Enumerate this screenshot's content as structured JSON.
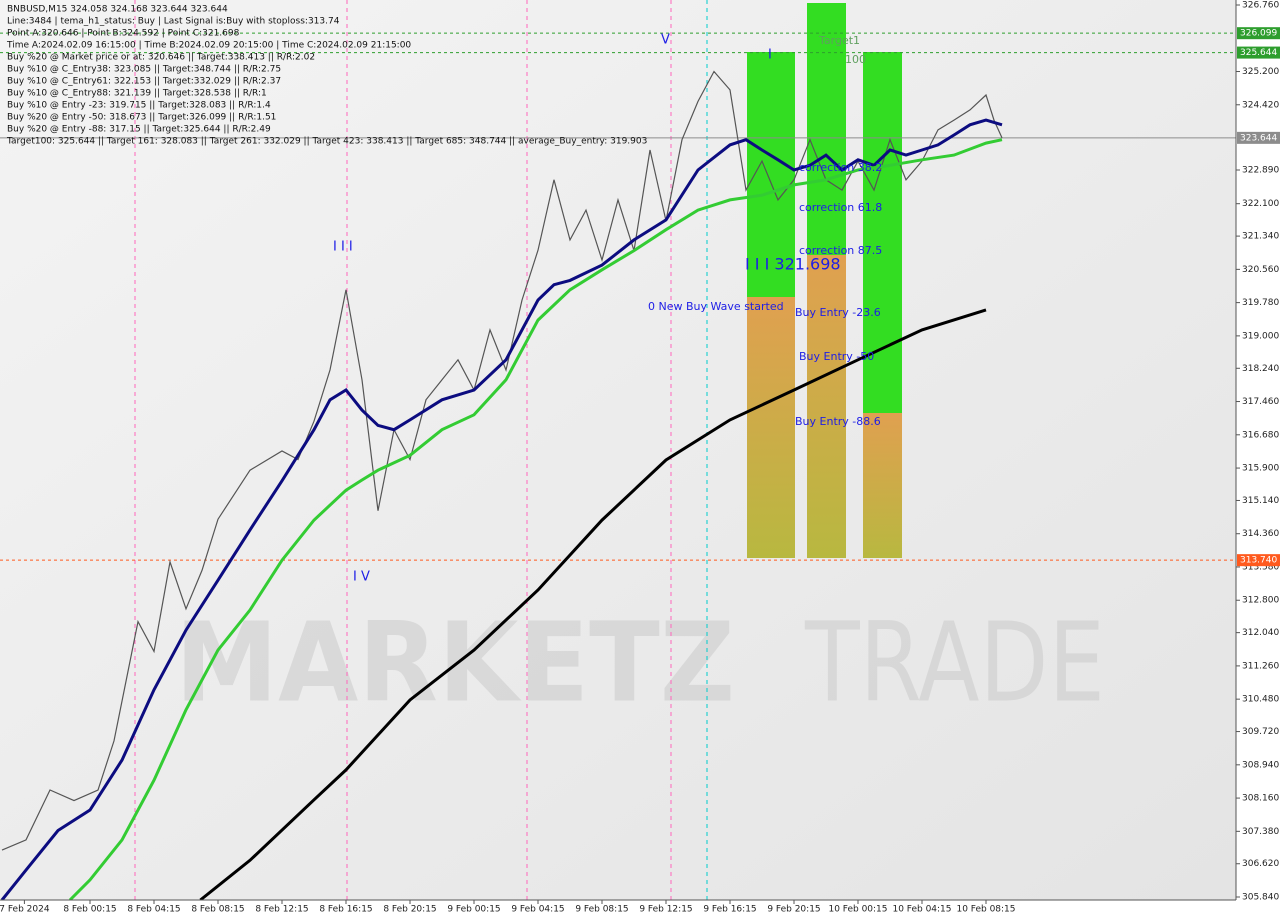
{
  "chart_data": {
    "type": "line",
    "info": [
      "BNBUSD,M15  324.058 324.168 323.644 323.644",
      "Line:3484 | tema_h1_status: Buy | Last Signal is:Buy with stoploss:313.74",
      "Point A:320.646 | Point B:324.592 | Point C:321.698",
      "Time A:2024.02.09 16:15:00 | Time B:2024.02.09 20:15:00 | Time C:2024.02.09 21:15:00",
      "Buy %20 @ Market price or at: 320.646 || Target:338.413 || R/R:2.02",
      "Buy %10 @ C_Entry38: 323.085 || Target:348.744 || R/R:2.75",
      "Buy %10 @ C_Entry61: 322.153 || Target:332.029 || R/R:2.37",
      "Buy %10 @ C_Entry88: 321.139 || Target:328.538 || R/R:1",
      "Buy %10 @ Entry -23: 319.715 || Target:328.083 || R/R:1.4",
      "Buy %20 @ Entry -50: 318.673 || Target:326.099 || R/R:1.51",
      "Buy %20 @ Entry -88: 317.15 || Target:325.644 || R/R:2.49",
      "Target100: 325.644 || Target 161: 328.083 || Target 261: 332.029 || Target 423: 338.413 || Target 685: 348.744 || average_Buy_entry: 319.903"
    ],
    "annotations": [
      "Target1",
      "100",
      "I I I 321.698",
      "0 New Buy Wave started",
      "Buy Entry -23.6",
      "Buy Entry -50",
      "Buy Entry -88.6",
      "correction 61.8",
      "correction 87.5",
      "correction 38.2",
      "I I I",
      "I V",
      "V",
      "I"
    ],
    "watermark": [
      "MARKETZ",
      "TRADE"
    ],
    "xlim": [
      -5.625,
      71.625
    ],
    "xticks": [
      {
        "value": -4.1,
        "label": "7 Feb 2024"
      },
      {
        "value": 0,
        "label": "8 Feb 00:15"
      },
      {
        "value": 4,
        "label": "8 Feb 04:15"
      },
      {
        "value": 8,
        "label": "8 Feb 08:15"
      },
      {
        "value": 12,
        "label": "8 Feb 12:15"
      },
      {
        "value": 16,
        "label": "8 Feb 16:15"
      },
      {
        "value": 20,
        "label": "8 Feb 20:15"
      },
      {
        "value": 24,
        "label": "9 Feb 00:15"
      },
      {
        "value": 28,
        "label": "9 Feb 04:15"
      },
      {
        "value": 32,
        "label": "9 Feb 08:15"
      },
      {
        "value": 36,
        "label": "9 Feb 12:15"
      },
      {
        "value": 40,
        "label": "9 Feb 16:15"
      },
      {
        "value": 44,
        "label": "9 Feb 20:15"
      },
      {
        "value": 48,
        "label": "10 Feb 00:15"
      },
      {
        "value": 52,
        "label": "10 Feb 04:15"
      },
      {
        "value": 56,
        "label": "10 Feb 08:15"
      }
    ],
    "ylim": [
      305.84,
      326.76
    ],
    "yticks": [
      {
        "value": 326.76,
        "label": "326.760"
      },
      {
        "value": 325.2,
        "label": "325.200"
      },
      {
        "value": 324.42,
        "label": "324.420"
      },
      {
        "value": 322.89,
        "label": "322.890"
      },
      {
        "value": 322.1,
        "label": "322.100"
      },
      {
        "value": 321.34,
        "label": "321.340"
      },
      {
        "value": 320.56,
        "label": "320.560"
      },
      {
        "value": 319.78,
        "label": "319.780"
      },
      {
        "value": 319,
        "label": "319.000"
      },
      {
        "value": 318.24,
        "label": "318.240"
      },
      {
        "value": 317.46,
        "label": "317.460"
      },
      {
        "value": 316.68,
        "label": "316.680"
      },
      {
        "value": 315.9,
        "label": "315.900"
      },
      {
        "value": 315.14,
        "label": "315.140"
      },
      {
        "value": 314.36,
        "label": "314.360"
      },
      {
        "value": 313.58,
        "label": "313.580"
      },
      {
        "value": 312.8,
        "label": "312.800"
      },
      {
        "value": 312.04,
        "label": "312.040"
      },
      {
        "value": 311.26,
        "label": "311.260"
      },
      {
        "value": 310.48,
        "label": "310.480"
      },
      {
        "value": 309.72,
        "label": "309.720"
      },
      {
        "value": 308.94,
        "label": "308.940"
      },
      {
        "value": 308.16,
        "label": "308.160"
      },
      {
        "value": 307.38,
        "label": "307.380"
      },
      {
        "value": 306.62,
        "label": "306.620"
      },
      {
        "value": 305.84,
        "label": "305.840"
      }
    ],
    "levels": [
      {
        "value": 326.099,
        "label": "326.099",
        "color": "#2e9e2e"
      },
      {
        "value": 325.644,
        "label": "325.644",
        "color": "#2e9e2e"
      },
      {
        "value": 323.644,
        "label": "323.644",
        "color": "#8c8c8c"
      },
      {
        "value": 313.74,
        "label": "313.740",
        "color": "#ff5a1e"
      }
    ],
    "series": [
      {
        "color": "#555555",
        "x": [
          -5.5,
          -4,
          -2.5,
          -1,
          0.5,
          1.5,
          3,
          4,
          5,
          6,
          7,
          8,
          10,
          12,
          13,
          14,
          15,
          16,
          17,
          18,
          19,
          20,
          21,
          22,
          23,
          24,
          25,
          26,
          27,
          28,
          29,
          30,
          31,
          32,
          33,
          34,
          35,
          36,
          37,
          38,
          39,
          40,
          41,
          42,
          43,
          44,
          45,
          46,
          47,
          48,
          49,
          50,
          51,
          52,
          53,
          54,
          55,
          56,
          56.5,
          57
        ],
        "values": [
          306.94,
          307.18,
          308.35,
          308.1,
          308.35,
          309.5,
          312.3,
          311.6,
          313.7,
          312.6,
          313.5,
          314.7,
          315.85,
          316.3,
          316.1,
          317.0,
          318.2,
          320.08,
          317.97,
          314.9,
          316.8,
          316.1,
          317.5,
          317.97,
          318.44,
          317.73,
          319.14,
          318.2,
          319.84,
          321.01,
          322.66,
          321.25,
          321.95,
          320.78,
          322.19,
          321.0,
          323.36,
          321.7,
          323.6,
          324.5,
          325.2,
          324.77,
          322.42,
          323.1,
          322.19,
          322.66,
          323.6,
          322.66,
          322.42,
          323.1,
          322.42,
          323.6,
          322.66,
          323.1,
          323.83,
          324.06,
          324.3,
          324.65,
          324.06,
          323.644
        ]
      },
      {
        "color": "#0c0c80",
        "x": [
          -5.5,
          -4,
          -2,
          0,
          2,
          4,
          6,
          8,
          10,
          12,
          14,
          15,
          16,
          17,
          18,
          19,
          20,
          22,
          24,
          26,
          28,
          29,
          30,
          32,
          34,
          36,
          38,
          40,
          41,
          42,
          43,
          44,
          45,
          46,
          47,
          48,
          49,
          50,
          51,
          52,
          53,
          54,
          55,
          56,
          57
        ],
        "values": [
          305.77,
          306.47,
          307.4,
          307.88,
          309.05,
          310.7,
          312.1,
          313.27,
          314.45,
          315.6,
          316.8,
          317.5,
          317.73,
          317.26,
          316.9,
          316.8,
          317.03,
          317.5,
          317.73,
          318.44,
          319.84,
          320.2,
          320.3,
          320.66,
          321.25,
          321.72,
          322.89,
          323.48,
          323.6,
          323.36,
          323.13,
          322.89,
          323.0,
          323.24,
          322.89,
          323.13,
          323.0,
          323.36,
          323.24,
          323.36,
          323.48,
          323.71,
          323.95,
          324.06,
          323.95
        ]
      },
      {
        "color": "#33cc33",
        "x": [
          -1.25,
          0,
          2,
          4,
          6,
          8,
          10,
          12,
          14,
          16,
          17,
          18,
          20,
          22,
          24,
          26,
          28,
          30,
          32,
          34,
          36,
          38,
          40,
          42,
          44,
          46,
          48,
          50,
          52,
          54,
          56,
          57
        ],
        "values": [
          305.77,
          306.24,
          307.18,
          308.58,
          310.23,
          311.63,
          312.57,
          313.74,
          314.68,
          315.38,
          315.62,
          315.85,
          316.2,
          316.8,
          317.15,
          317.97,
          319.37,
          320.08,
          320.55,
          321.0,
          321.49,
          321.95,
          322.19,
          322.3,
          322.54,
          322.66,
          322.89,
          323.0,
          323.13,
          323.24,
          323.52,
          323.6
        ]
      },
      {
        "color": "#000000",
        "x": [
          6.9,
          10,
          14,
          16,
          20,
          24,
          28,
          32,
          36,
          40,
          44,
          48,
          52,
          56
        ],
        "values": [
          305.77,
          306.7,
          308.12,
          308.82,
          310.46,
          311.63,
          313.04,
          314.68,
          316.09,
          317.03,
          317.73,
          318.44,
          319.14,
          319.61
        ]
      }
    ]
  }
}
